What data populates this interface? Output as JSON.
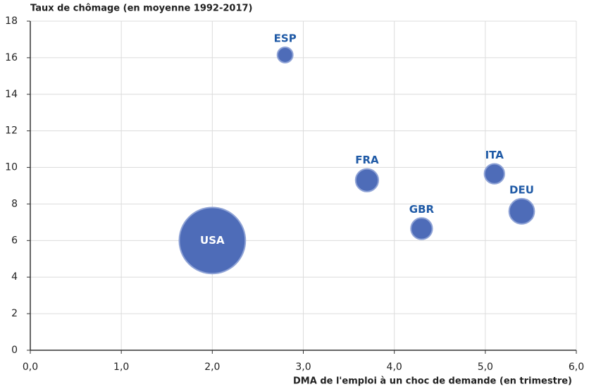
{
  "chart_data": {
    "type": "bubble",
    "y_label": "Taux de chômage (en moyenne 1992-2017)",
    "x_label": "DMA de l'emploi à un choc de demande (en trimestre)",
    "labels": [
      "USA",
      "ESP",
      "FRA",
      "GBR",
      "ITA",
      "DEU"
    ],
    "x": [
      2.0,
      2.8,
      3.7,
      4.3,
      5.1,
      5.4
    ],
    "values": [
      6.0,
      16.15,
      9.3,
      6.65,
      9.65,
      7.6
    ],
    "sizes": [
      2200,
      120,
      260,
      230,
      200,
      320
    ],
    "color": "#4e6cb8",
    "label_color": "#1f5aa6",
    "xlim": [
      0,
      6
    ],
    "xticks": [
      {
        "value": 0,
        "label": "0,0"
      },
      {
        "value": 1,
        "label": "1,0"
      },
      {
        "value": 2,
        "label": "2,0"
      },
      {
        "value": 3,
        "label": "3,0"
      },
      {
        "value": 4,
        "label": "4,0"
      },
      {
        "value": 5,
        "label": "5,0"
      },
      {
        "value": 6,
        "label": "6,0"
      }
    ],
    "ylim": [
      0,
      18
    ],
    "yticks": [
      0,
      2,
      4,
      6,
      8,
      10,
      12,
      14,
      16,
      18
    ],
    "grid": true
  }
}
